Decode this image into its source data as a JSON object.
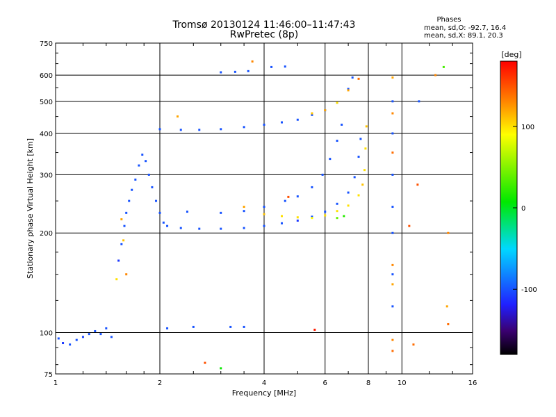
{
  "chart_data": {
    "type": "scatter",
    "title": "Tromsø 20130124 11:46:00–11:47:43",
    "subtitle": "RwPretec (8p)",
    "xlabel": "Frequency [MHz]",
    "ylabel": "Stationary phase Virtual Height [km]",
    "x_scale": "log",
    "y_scale": "log",
    "xlim": [
      1,
      16
    ],
    "ylim": [
      75,
      750
    ],
    "x_ticks": [
      1,
      2,
      4,
      6,
      8,
      10,
      16
    ],
    "y_ticks": [
      75,
      100,
      200,
      300,
      400,
      500,
      600,
      750
    ],
    "grid": true,
    "phase_legend": {
      "heading": "Phases",
      "line_o": "mean, sd,O: -92.7, 16.4",
      "line_x": "mean, sd,X:  89.1, 20.3"
    },
    "colorbar": {
      "label": "[deg]",
      "ticks": [
        100,
        0,
        -100
      ],
      "range": [
        -180,
        180
      ],
      "colormap": "rainbow"
    },
    "series": [
      {
        "points": [
          [
            1.02,
            96,
            -100
          ],
          [
            1.05,
            93,
            -110
          ],
          [
            1.1,
            92,
            -100
          ],
          [
            1.15,
            95,
            -100
          ],
          [
            1.2,
            97,
            -105
          ],
          [
            1.25,
            99,
            -100
          ],
          [
            1.3,
            101,
            -100
          ],
          [
            1.35,
            99,
            -100
          ],
          [
            1.4,
            103,
            -100
          ],
          [
            1.45,
            97,
            -100
          ],
          [
            1.52,
            165,
            -110
          ],
          [
            1.55,
            185,
            -100
          ],
          [
            1.58,
            210,
            -100
          ],
          [
            1.6,
            230,
            -100
          ],
          [
            1.63,
            250,
            -100
          ],
          [
            1.66,
            270,
            -100
          ],
          [
            1.7,
            290,
            -100
          ],
          [
            1.74,
            320,
            -100
          ],
          [
            1.78,
            345,
            -100
          ],
          [
            1.82,
            330,
            -100
          ],
          [
            1.86,
            300,
            -100
          ],
          [
            1.9,
            275,
            -100
          ],
          [
            1.95,
            250,
            -100
          ],
          [
            2.0,
            230,
            -100
          ],
          [
            2.05,
            215,
            -100
          ],
          [
            2.1,
            210,
            -100
          ],
          [
            2.3,
            207,
            -100
          ],
          [
            2.6,
            206,
            -100
          ],
          [
            3.0,
            206,
            -100
          ],
          [
            3.5,
            207,
            -100
          ],
          [
            4.0,
            210,
            -100
          ],
          [
            4.5,
            214,
            -100
          ],
          [
            5.0,
            218,
            -110
          ],
          [
            5.5,
            224,
            -100
          ],
          [
            6.0,
            232,
            -100
          ],
          [
            6.5,
            245,
            -100
          ],
          [
            7.0,
            265,
            -100
          ],
          [
            7.3,
            295,
            -100
          ],
          [
            7.5,
            340,
            -100
          ],
          [
            7.6,
            385,
            -100
          ],
          [
            2.4,
            232,
            -100
          ],
          [
            3.0,
            230,
            -100
          ],
          [
            3.5,
            233,
            -100
          ],
          [
            4.0,
            240,
            -100
          ],
          [
            4.6,
            250,
            -100
          ],
          [
            5.0,
            258,
            -100
          ],
          [
            5.5,
            275,
            -100
          ],
          [
            5.9,
            300,
            -100
          ],
          [
            6.2,
            335,
            -100
          ],
          [
            6.5,
            380,
            -100
          ],
          [
            6.7,
            425,
            -100
          ],
          [
            2.0,
            412,
            -100
          ],
          [
            2.3,
            410,
            -100
          ],
          [
            2.6,
            410,
            -100
          ],
          [
            3.0,
            412,
            -100
          ],
          [
            3.5,
            418,
            -100
          ],
          [
            4.0,
            425,
            -100
          ],
          [
            4.5,
            432,
            -100
          ],
          [
            5.0,
            440,
            -100
          ],
          [
            5.5,
            455,
            -100
          ],
          [
            6.0,
            470,
            -100
          ],
          [
            6.5,
            495,
            -100
          ],
          [
            7.0,
            545,
            -100
          ],
          [
            7.2,
            590,
            -100
          ],
          [
            3.0,
            612,
            -100
          ],
          [
            3.3,
            614,
            -100
          ],
          [
            3.6,
            617,
            -100
          ],
          [
            4.2,
            635,
            -100
          ],
          [
            4.6,
            637,
            -100
          ],
          [
            2.5,
            104,
            -100
          ],
          [
            3.2,
            104,
            -100
          ],
          [
            3.5,
            104,
            -100
          ],
          [
            2.1,
            103,
            -100
          ],
          [
            9.4,
            500,
            -100
          ],
          [
            9.4,
            400,
            -100
          ],
          [
            9.4,
            300,
            -100
          ],
          [
            9.4,
            240,
            -100
          ],
          [
            9.4,
            200,
            -100
          ],
          [
            9.4,
            150,
            -100
          ],
          [
            9.4,
            120,
            -100
          ],
          [
            11.2,
            500,
            -100
          ]
        ]
      },
      {
        "points": [
          [
            3.5,
            240,
            120
          ],
          [
            4.0,
            228,
            110
          ],
          [
            4.5,
            225,
            100
          ],
          [
            5.0,
            223,
            100
          ],
          [
            5.5,
            222,
            90
          ],
          [
            6.0,
            226,
            100
          ],
          [
            6.5,
            233,
            100
          ],
          [
            7.0,
            242,
            100
          ],
          [
            7.5,
            260,
            100
          ],
          [
            7.7,
            280,
            110
          ],
          [
            7.8,
            310,
            100
          ],
          [
            7.85,
            360,
            100
          ],
          [
            7.9,
            420,
            110
          ],
          [
            5.5,
            460,
            110
          ],
          [
            6.0,
            470,
            120
          ],
          [
            6.5,
            495,
            100
          ],
          [
            7.0,
            540,
            120
          ],
          [
            7.5,
            585,
            140
          ],
          [
            1.55,
            220,
            120
          ],
          [
            1.57,
            190,
            110
          ],
          [
            1.6,
            150,
            130
          ],
          [
            1.5,
            145,
            100
          ],
          [
            2.25,
            450,
            120
          ],
          [
            3.7,
            660,
            130
          ],
          [
            4.7,
            257,
            150
          ],
          [
            9.4,
            590,
            120
          ],
          [
            9.4,
            460,
            130
          ],
          [
            9.4,
            350,
            140
          ],
          [
            9.4,
            160,
            130
          ],
          [
            9.4,
            140,
            120
          ],
          [
            9.4,
            95,
            130
          ],
          [
            9.4,
            88,
            140
          ],
          [
            10.5,
            210,
            150
          ],
          [
            10.8,
            92,
            140
          ],
          [
            11.1,
            280,
            150
          ],
          [
            12.5,
            600,
            130
          ],
          [
            13.5,
            120,
            120
          ],
          [
            13.6,
            106,
            140
          ],
          [
            13.6,
            200,
            130
          ],
          [
            13.2,
            635,
            30
          ],
          [
            2.7,
            81,
            150
          ],
          [
            5.6,
            102,
            170
          ],
          [
            6.8,
            225,
            20
          ],
          [
            6.5,
            222,
            40
          ],
          [
            3.0,
            78,
            10
          ]
        ]
      }
    ]
  }
}
